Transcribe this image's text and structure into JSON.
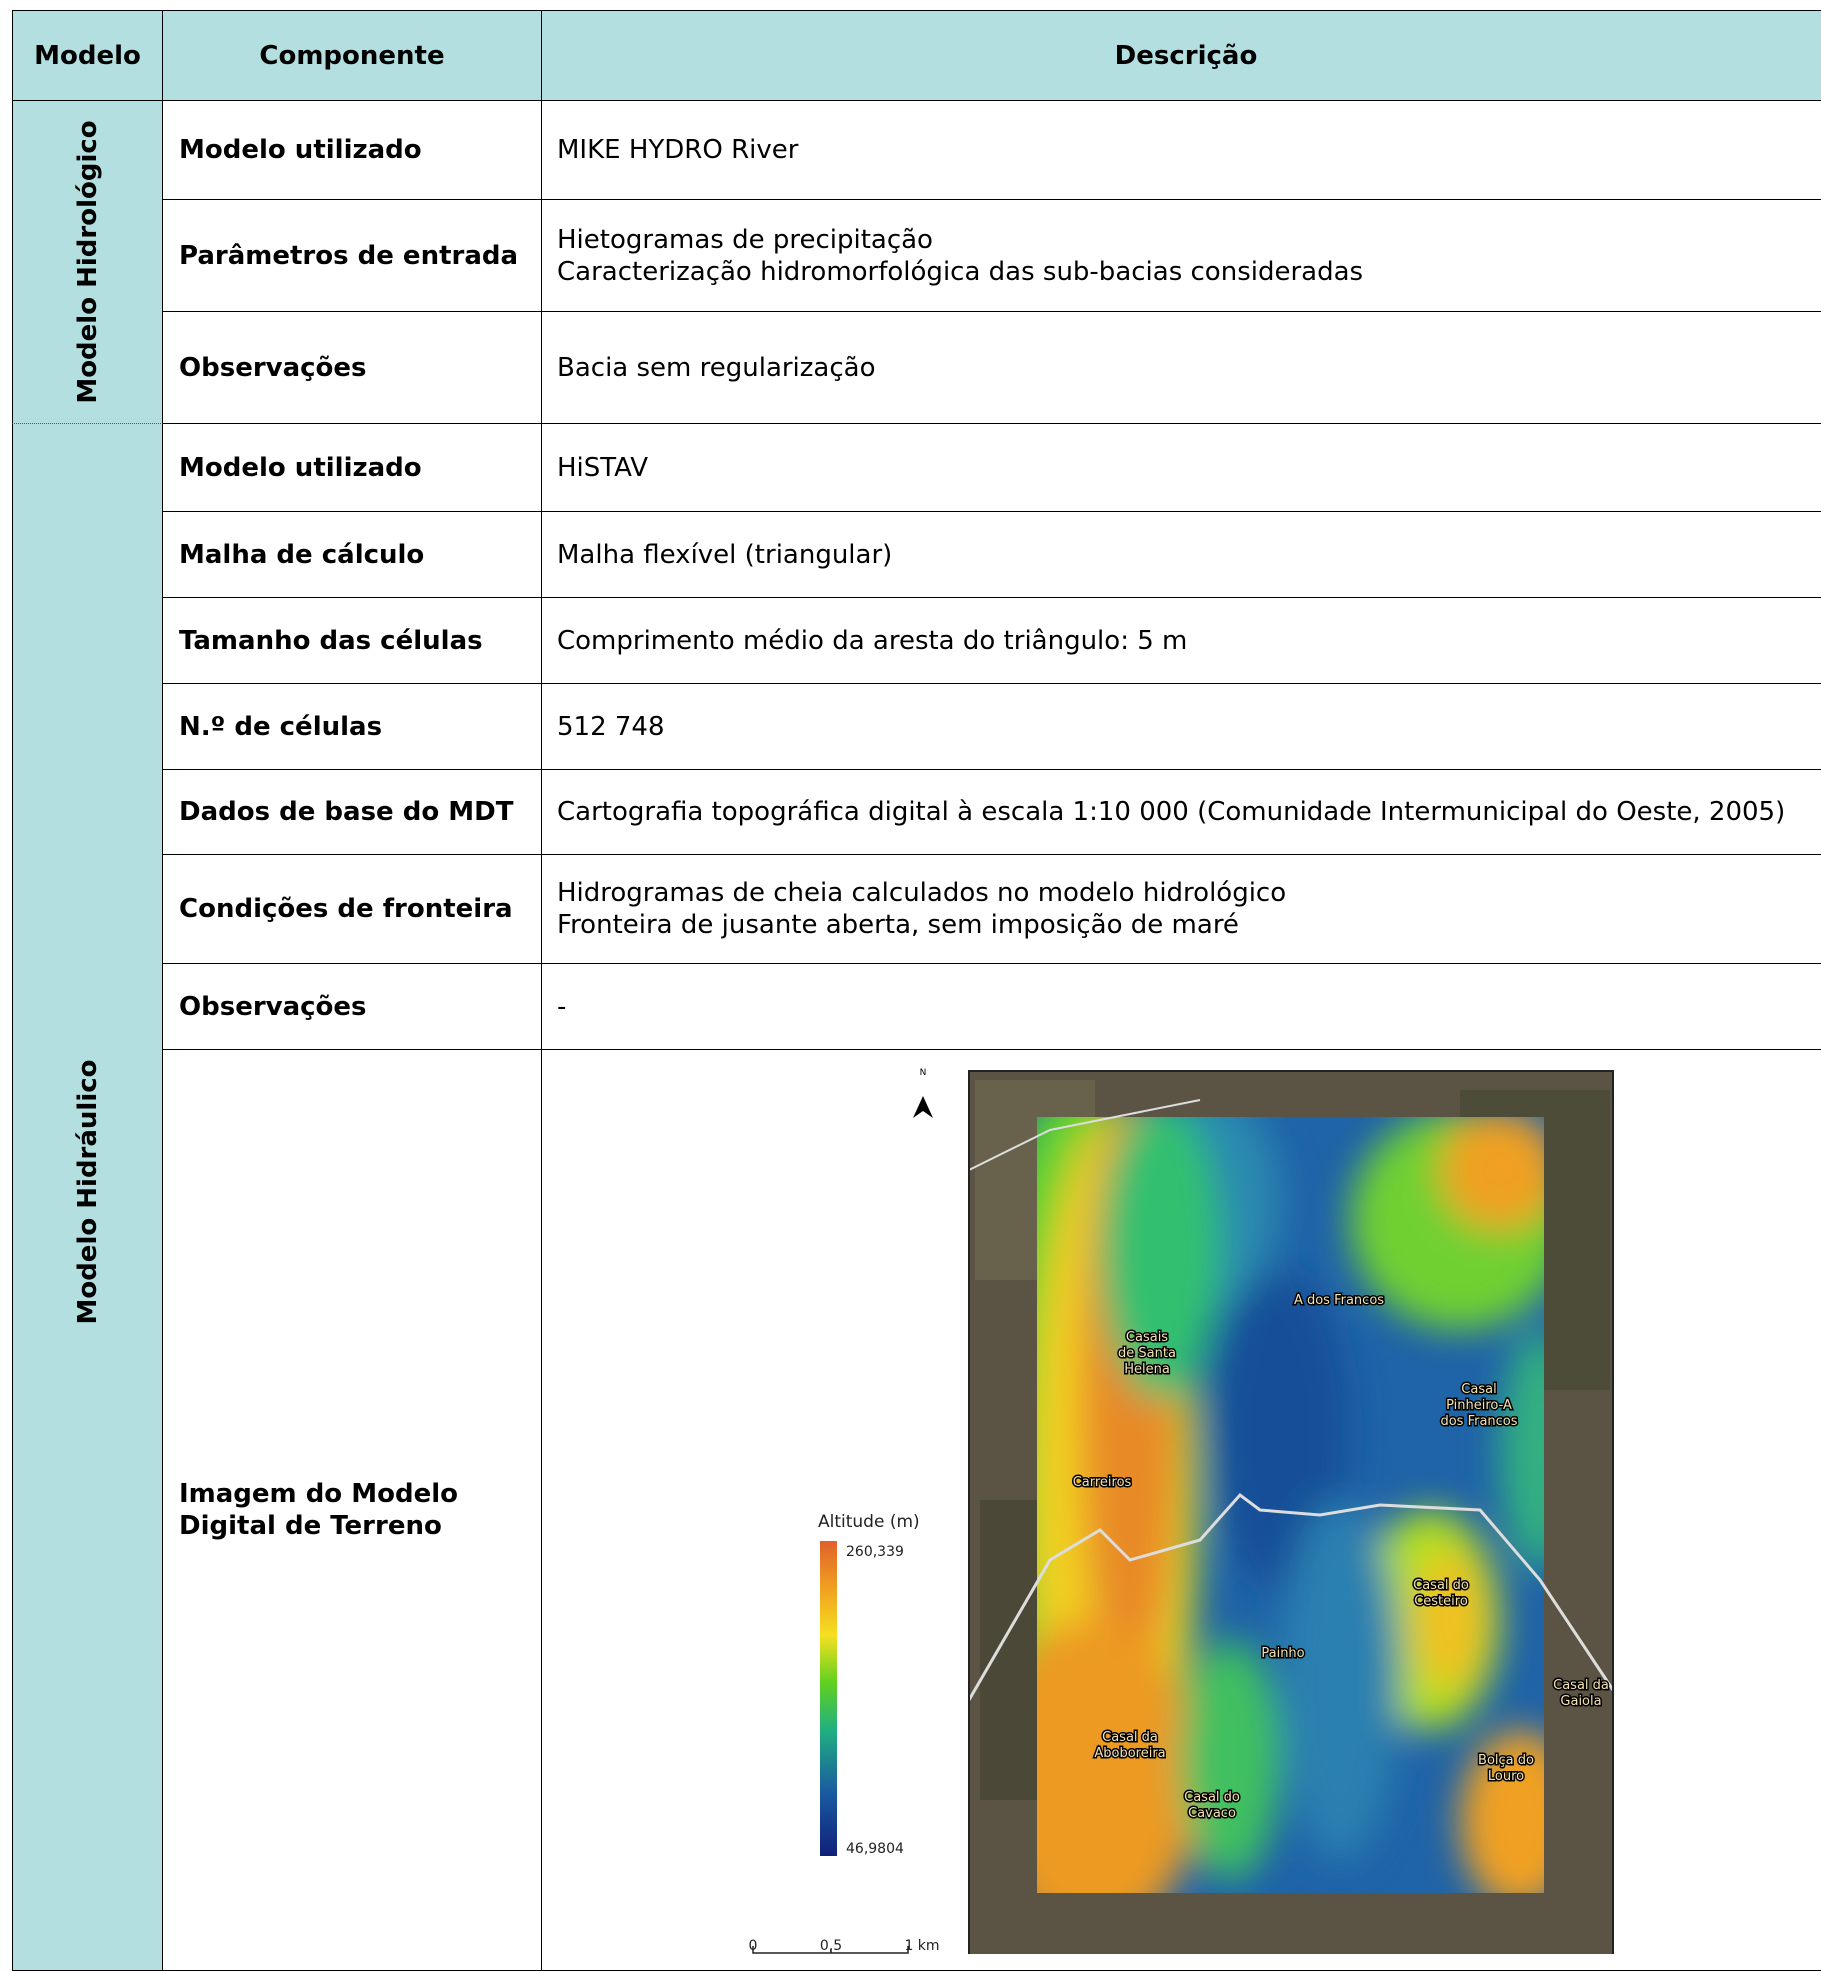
{
  "table": {
    "headers": [
      "Modelo",
      "Componente",
      "Descrição"
    ],
    "groups": [
      {
        "label": "Modelo Hidrológico",
        "rows": [
          {
            "component": "Modelo utilizado",
            "description": [
              "MIKE HYDRO River"
            ]
          },
          {
            "component": "Parâmetros de entrada",
            "description": [
              "Hietogramas de precipitação",
              "Caracterização hidromorfológica das sub-bacias consideradas"
            ]
          },
          {
            "component": "Observações",
            "description": [
              "Bacia sem regularização"
            ]
          }
        ]
      },
      {
        "label": "Modelo Hidráulico",
        "rows": [
          {
            "component": "Modelo utilizado",
            "description": [
              "HiSTAV"
            ]
          },
          {
            "component": "Malha de cálculo",
            "description": [
              "Malha flexível (triangular)"
            ]
          },
          {
            "component": "Tamanho das células",
            "description": [
              "Comprimento médio da aresta do triângulo: 5 m"
            ]
          },
          {
            "component": "N.º de células",
            "description": [
              "512 748"
            ]
          },
          {
            "component": "Dados de base do MDT",
            "description": [
              "Cartografia topográfica digital à escala 1:10 000 (Comunidade Intermunicipal do Oeste, 2005)"
            ]
          },
          {
            "component": "Condições de fronteira",
            "description": [
              "Hidrogramas de cheia calculados no modelo hidrológico",
              "Fronteira de jusante aberta, sem imposição de maré"
            ]
          },
          {
            "component": "Observações",
            "description": [
              "-"
            ]
          },
          {
            "component": "Imagem do Modelo Digital de Terreno",
            "description": []
          }
        ]
      }
    ]
  },
  "figure": {
    "north": "N",
    "legend_title": "Altitude (m)",
    "legend_max": "260,339",
    "legend_min": "46,9804",
    "scale_labels": [
      "0",
      "0,5",
      "1 km"
    ],
    "places": [
      {
        "lines": [
          "A dos Francos"
        ]
      },
      {
        "lines": [
          "Casais",
          "de Santa",
          "Helena"
        ]
      },
      {
        "lines": [
          "Casal",
          "Pinheiro-A",
          "dos Francos"
        ]
      },
      {
        "lines": [
          "Carreiros"
        ]
      },
      {
        "lines": [
          "Casal do",
          "Cesteiro"
        ]
      },
      {
        "lines": [
          "Painho"
        ]
      },
      {
        "lines": [
          "Casal da",
          "Aboboreira"
        ]
      },
      {
        "lines": [
          "Casal do",
          "Cavaco"
        ]
      },
      {
        "lines": [
          "Bolça do",
          "Louro"
        ]
      },
      {
        "lines": [
          "Casal da",
          "Gaiola"
        ]
      }
    ]
  }
}
